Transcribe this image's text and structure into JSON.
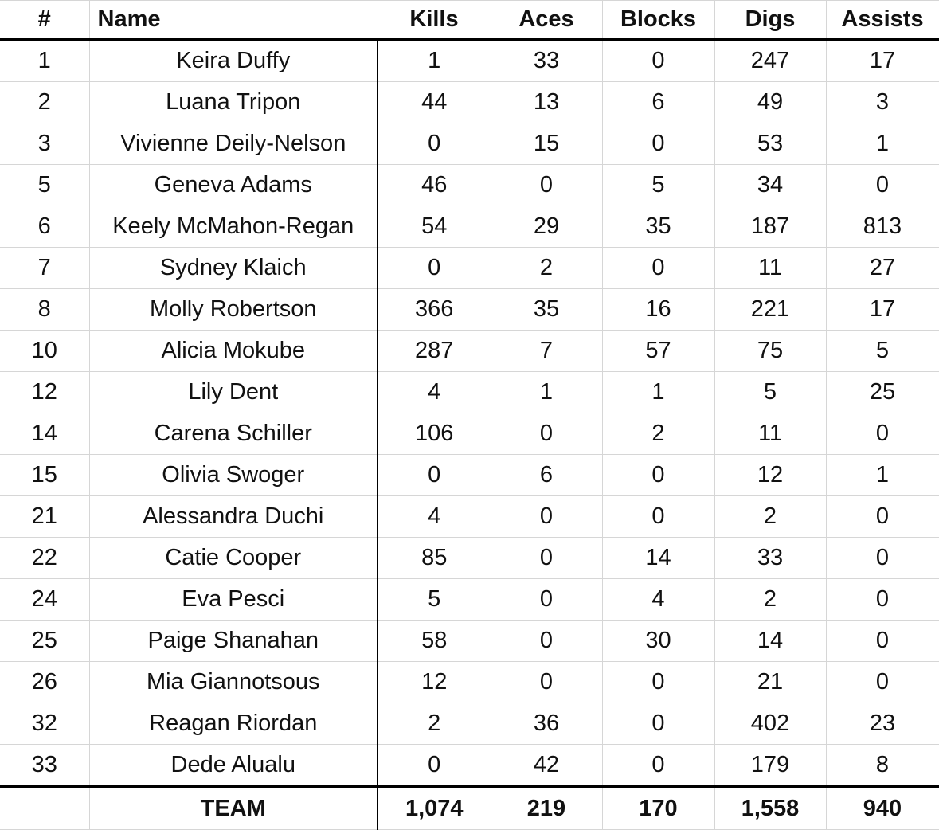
{
  "table": {
    "columns": [
      "#",
      "Name",
      "Kills",
      "Aces",
      "Blocks",
      "Digs",
      "Assists"
    ],
    "rows": [
      [
        1,
        "Keira Duffy",
        1,
        33,
        0,
        247,
        17
      ],
      [
        2,
        "Luana Tripon",
        44,
        13,
        6,
        49,
        3
      ],
      [
        3,
        "Vivienne Deily-Nelson",
        0,
        15,
        0,
        53,
        1
      ],
      [
        5,
        "Geneva Adams",
        46,
        0,
        5,
        34,
        0
      ],
      [
        6,
        "Keely McMahon-Regan",
        54,
        29,
        35,
        187,
        813
      ],
      [
        7,
        "Sydney Klaich",
        0,
        2,
        0,
        11,
        27
      ],
      [
        8,
        "Molly Robertson",
        366,
        35,
        16,
        221,
        17
      ],
      [
        10,
        "Alicia Mokube",
        287,
        7,
        57,
        75,
        5
      ],
      [
        12,
        "Lily Dent",
        4,
        1,
        1,
        5,
        25
      ],
      [
        14,
        "Carena Schiller",
        106,
        0,
        2,
        11,
        0
      ],
      [
        15,
        "Olivia Swoger",
        0,
        6,
        0,
        12,
        1
      ],
      [
        21,
        "Alessandra Duchi",
        4,
        0,
        0,
        2,
        0
      ],
      [
        22,
        "Catie Cooper",
        85,
        0,
        14,
        33,
        0
      ],
      [
        24,
        "Eva Pesci",
        5,
        0,
        4,
        2,
        0
      ],
      [
        25,
        "Paige Shanahan",
        58,
        0,
        30,
        14,
        0
      ],
      [
        26,
        "Mia Giannotsous",
        12,
        0,
        0,
        21,
        0
      ],
      [
        32,
        "Reagan Riordan",
        2,
        36,
        0,
        402,
        23
      ],
      [
        33,
        "Dede Alualu",
        0,
        42,
        0,
        179,
        8
      ]
    ],
    "total": {
      "label": "TEAM",
      "values": [
        "1,074",
        "219",
        "170",
        "1,558",
        "940"
      ]
    }
  }
}
